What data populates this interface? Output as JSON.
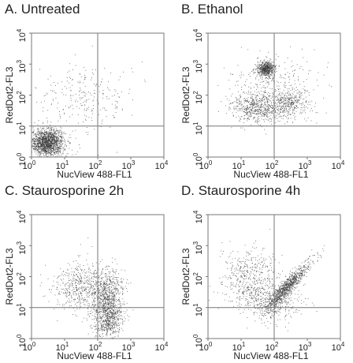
{
  "chart_data": [
    {
      "type": "scatter",
      "title": "A. Untreated",
      "xlabel": "NucView 488-FL1",
      "ylabel": "RedDot2-FL3",
      "xscale": "log",
      "yscale": "log",
      "xlim": [
        1,
        10000
      ],
      "ylim": [
        1,
        10000
      ],
      "xticks": [
        "10^0",
        "10^1",
        "10^2",
        "10^3",
        "10^4"
      ],
      "yticks": [
        "10^0",
        "10^1",
        "10^2",
        "10^3",
        "10^4"
      ],
      "quadrant_gates": {
        "x": 100,
        "y": 10
      },
      "populations": [
        {
          "center": [
            3,
            3
          ],
          "spread_log10": [
            0.25,
            0.22
          ],
          "share": 0.85
        },
        {
          "center": [
            40,
            80
          ],
          "spread_log10": [
            0.7,
            0.6
          ],
          "share": 0.15
        }
      ]
    },
    {
      "type": "scatter",
      "title": "B. Ethanol",
      "xlabel": "NucView 488-FL1",
      "ylabel": "RedDot2-FL3",
      "xscale": "log",
      "yscale": "log",
      "xlim": [
        1,
        10000
      ],
      "ylim": [
        1,
        10000
      ],
      "xticks": [
        "10^0",
        "10^1",
        "10^2",
        "10^3",
        "10^4"
      ],
      "yticks": [
        "10^0",
        "10^1",
        "10^2",
        "10^3",
        "10^4"
      ],
      "quadrant_gates": {
        "x": 100,
        "y": 10
      },
      "populations": [
        {
          "center": [
            55,
            700
          ],
          "spread_log10": [
            0.12,
            0.12
          ],
          "share": 0.3
        },
        {
          "center": [
            30,
            40
          ],
          "spread_log10": [
            0.45,
            0.25
          ],
          "share": 0.35
        },
        {
          "center": [
            300,
            60
          ],
          "spread_log10": [
            0.3,
            0.25
          ],
          "share": 0.2
        },
        {
          "center": [
            100,
            300
          ],
          "spread_log10": [
            0.6,
            0.5
          ],
          "share": 0.15
        }
      ]
    },
    {
      "type": "scatter",
      "title": "C. Staurosporine 2h",
      "xlabel": "NucView 488-FL1",
      "ylabel": "RedDot2-FL3",
      "xscale": "log",
      "yscale": "log",
      "xlim": [
        1,
        10000
      ],
      "ylim": [
        1,
        10000
      ],
      "xticks": [
        "10^0",
        "10^1",
        "10^2",
        "10^3",
        "10^4"
      ],
      "yticks": [
        "10^0",
        "10^1",
        "10^2",
        "10^3",
        "10^4"
      ],
      "quadrant_gates": {
        "x": 100,
        "y": 10
      },
      "populations": [
        {
          "center": [
            200,
            5
          ],
          "spread_log10": [
            0.22,
            0.4
          ],
          "share": 0.45
        },
        {
          "center": [
            200,
            40
          ],
          "spread_log10": [
            0.25,
            0.35
          ],
          "share": 0.25
        },
        {
          "center": [
            30,
            50
          ],
          "spread_log10": [
            0.45,
            0.4
          ],
          "share": 0.3
        }
      ]
    },
    {
      "type": "scatter",
      "title": "D. Staurosporine 4h",
      "xlabel": "NucView 488-FL1",
      "ylabel": "RedDot2-FL3",
      "xscale": "log",
      "yscale": "log",
      "xlim": [
        1,
        10000
      ],
      "ylim": [
        1,
        10000
      ],
      "xticks": [
        "10^0",
        "10^1",
        "10^2",
        "10^3",
        "10^4"
      ],
      "yticks": [
        "10^0",
        "10^1",
        "10^2",
        "10^3",
        "10^4"
      ],
      "quadrant_gates": {
        "x": 100,
        "y": 10
      },
      "populations": [
        {
          "center": [
            250,
            50
          ],
          "spread_log10": [
            0.2,
            0.2
          ],
          "share": 0.5,
          "diagonal": true
        },
        {
          "center": [
            20,
            80
          ],
          "spread_log10": [
            0.45,
            0.5
          ],
          "share": 0.3
        },
        {
          "center": [
            100,
            15
          ],
          "spread_log10": [
            0.4,
            0.3
          ],
          "share": 0.2
        }
      ]
    }
  ]
}
